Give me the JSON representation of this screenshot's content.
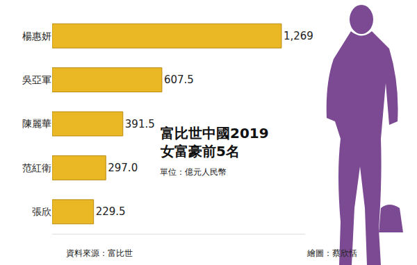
{
  "chart_data": {
    "type": "bar",
    "orientation": "horizontal",
    "title": "富比世中國2019\n女富豪前5名",
    "subtitle": "單位：億元人民幣",
    "annotations": [
      "資料來源：富比世",
      "繪圖：蔡欣恬"
    ],
    "categories": [
      "楊惠妍",
      "吳亞軍",
      "陳麗華",
      "范紅衛",
      "張欣"
    ],
    "values": [
      1269,
      607.5,
      391.5,
      297.0,
      229.5
    ],
    "value_labels": [
      "1,269",
      "607.5",
      "391.5",
      "297.0",
      "229.5"
    ],
    "color": "#e9b824",
    "data_labels": true,
    "tick_labels": "y",
    "xlim": [
      0,
      1400
    ],
    "xticks": [],
    "grid": false
  }
}
